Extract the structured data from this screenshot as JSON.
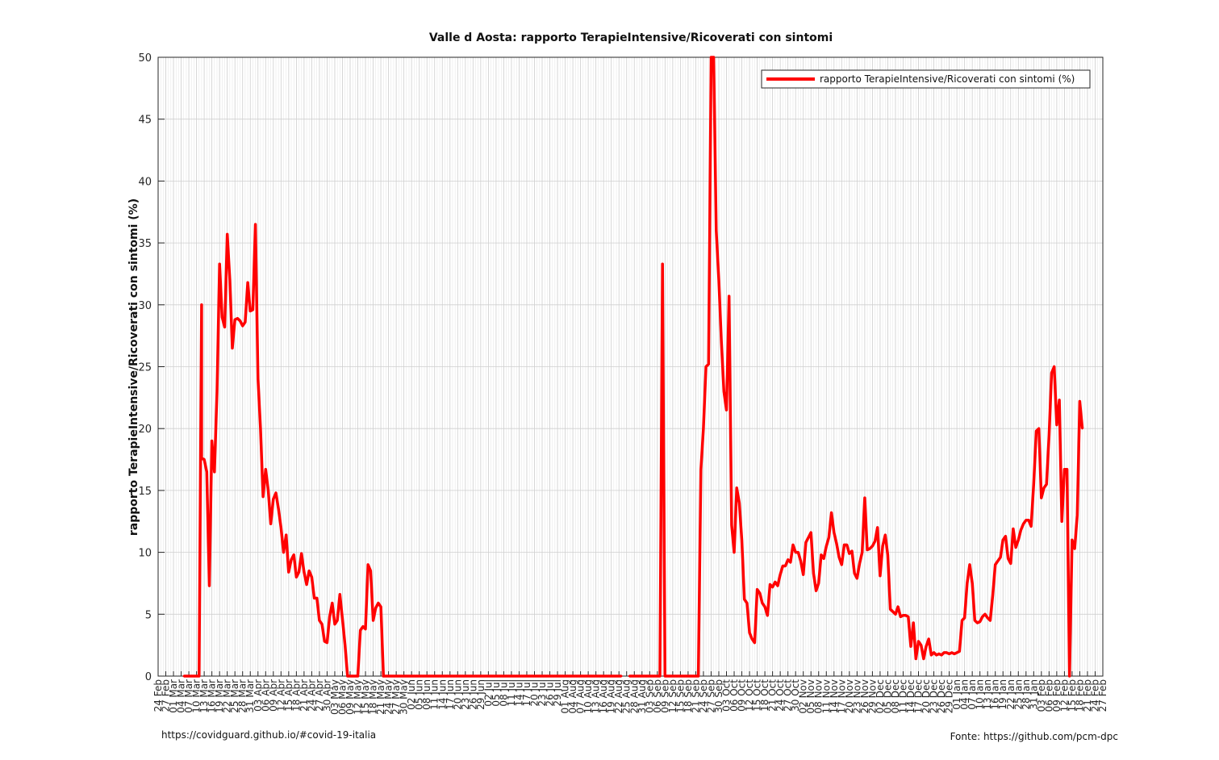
{
  "footer": {
    "left": "https://covidguard.github.io/#covid-19-italia",
    "right": "Fonte: https://github.com/pcm-dpc"
  },
  "chart_data": {
    "type": "line",
    "title": "Valle d Aosta: rapporto TerapieIntensive/Ricoverati con sintomi",
    "ylabel": "rapporto TerapieIntensive/Ricoverati con sintomi (%)",
    "xlabel": "",
    "ylim": [
      0,
      50
    ],
    "yticks": [
      0,
      5,
      10,
      15,
      20,
      25,
      30,
      35,
      40,
      45,
      50
    ],
    "grid": true,
    "legend_position": "top-right",
    "x_start": "2020-02-24",
    "x_end": "2021-02-27",
    "xticks": [
      "24 Feb",
      "27 Feb",
      "01 Mar",
      "04 Mar",
      "07 Mar",
      "10 Mar",
      "13 Mar",
      "16 Mar",
      "19 Mar",
      "22 Mar",
      "25 Mar",
      "28 Mar",
      "31 Mar",
      "03 Apr",
      "06 Apr",
      "09 Apr",
      "12 Apr",
      "15 Apr",
      "18 Apr",
      "21 Apr",
      "24 Apr",
      "27 Apr",
      "30 Apr",
      "03 May",
      "06 May",
      "09 May",
      "12 May",
      "15 May",
      "18 May",
      "21 May",
      "24 May",
      "27 May",
      "30 May",
      "02 Jun",
      "05 Jun",
      "08 Jun",
      "11 Jun",
      "14 Jun",
      "17 Jun",
      "20 Jun",
      "23 Jun",
      "26 Jun",
      "29 Jun",
      "02 Jul",
      "05 Jul",
      "08 Jul",
      "11 Jul",
      "14 Jul",
      "17 Jul",
      "20 Jul",
      "23 Jul",
      "26 Jul",
      "29 Jul",
      "01 Aug",
      "04 Aug",
      "07 Aug",
      "10 Aug",
      "13 Aug",
      "16 Aug",
      "19 Aug",
      "22 Aug",
      "25 Aug",
      "28 Aug",
      "31 Aug",
      "03 Sep",
      "06 Sep",
      "09 Sep",
      "12 Sep",
      "15 Sep",
      "18 Sep",
      "21 Sep",
      "24 Sep",
      "27 Sep",
      "30 Sep",
      "03 Oct",
      "06 Oct",
      "09 Oct",
      "12 Oct",
      "15 Oct",
      "18 Oct",
      "21 Oct",
      "24 Oct",
      "27 Oct",
      "30 Oct",
      "02 Nov",
      "05 Nov",
      "08 Nov",
      "11 Nov",
      "14 Nov",
      "17 Nov",
      "20 Nov",
      "23 Nov",
      "26 Nov",
      "29 Nov",
      "02 Dec",
      "05 Dec",
      "08 Dec",
      "11 Dec",
      "14 Dec",
      "17 Dec",
      "20 Dec",
      "23 Dec",
      "26 Dec",
      "29 Dec",
      "01 Jan",
      "04 Jan",
      "07 Jan",
      "10 Jan",
      "13 Jan",
      "16 Jan",
      "19 Jan",
      "22 Jan",
      "25 Jan",
      "28 Jan",
      "31 Jan",
      "03 Feb",
      "06 Feb",
      "09 Feb",
      "12 Feb",
      "15 Feb",
      "18 Feb",
      "21 Feb",
      "24 Feb",
      "27 Feb"
    ],
    "series": [
      {
        "name": "rapporto TerapieIntensive/Ricoverati con sintomi (%)",
        "color": "#ff0000",
        "points": [
          [
            "2020-03-05",
            0
          ],
          [
            "2020-03-11",
            0
          ],
          [
            "2020-03-12",
            30
          ],
          [
            "2020-03-12",
            17.6
          ],
          [
            "2020-03-13",
            17.5
          ],
          [
            "2020-03-14",
            16.5
          ],
          [
            "2020-03-15",
            7.3
          ],
          [
            "2020-03-16",
            19
          ],
          [
            "2020-03-17",
            16.5
          ],
          [
            "2020-03-18",
            23
          ],
          [
            "2020-03-19",
            33.3
          ],
          [
            "2020-03-20",
            29
          ],
          [
            "2020-03-21",
            28.2
          ],
          [
            "2020-03-22",
            35.7
          ],
          [
            "2020-03-23",
            32
          ],
          [
            "2020-03-24",
            26.5
          ],
          [
            "2020-03-25",
            28.8
          ],
          [
            "2020-03-26",
            28.9
          ],
          [
            "2020-03-27",
            28.7
          ],
          [
            "2020-03-28",
            28.3
          ],
          [
            "2020-03-29",
            28.6
          ],
          [
            "2020-03-30",
            31.8
          ],
          [
            "2020-03-31",
            29.5
          ],
          [
            "2020-04-01",
            29.6
          ],
          [
            "2020-04-02",
            36.5
          ],
          [
            "2020-04-03",
            24
          ],
          [
            "2020-04-04",
            20
          ],
          [
            "2020-04-05",
            14.5
          ],
          [
            "2020-04-06",
            16.7
          ],
          [
            "2020-04-07",
            15
          ],
          [
            "2020-04-08",
            12.3
          ],
          [
            "2020-04-09",
            14.3
          ],
          [
            "2020-04-10",
            14.8
          ],
          [
            "2020-04-11",
            13.5
          ],
          [
            "2020-04-12",
            12
          ],
          [
            "2020-04-13",
            10
          ],
          [
            "2020-04-14",
            11.4
          ],
          [
            "2020-04-15",
            8.4
          ],
          [
            "2020-04-16",
            9.4
          ],
          [
            "2020-04-17",
            9.8
          ],
          [
            "2020-04-18",
            8
          ],
          [
            "2020-04-19",
            8.4
          ],
          [
            "2020-04-20",
            9.9
          ],
          [
            "2020-04-21",
            8.4
          ],
          [
            "2020-04-22",
            7.4
          ],
          [
            "2020-04-23",
            8.5
          ],
          [
            "2020-04-24",
            8
          ],
          [
            "2020-04-25",
            6.3
          ],
          [
            "2020-04-26",
            6.3
          ],
          [
            "2020-04-27",
            4.5
          ],
          [
            "2020-04-28",
            4.2
          ],
          [
            "2020-04-29",
            2.8
          ],
          [
            "2020-04-30",
            2.7
          ],
          [
            "2020-05-01",
            4.8
          ],
          [
            "2020-05-02",
            5.9
          ],
          [
            "2020-05-03",
            4.2
          ],
          [
            "2020-05-04",
            4.5
          ],
          [
            "2020-05-05",
            6.6
          ],
          [
            "2020-05-06",
            4.6
          ],
          [
            "2020-05-07",
            2.5
          ],
          [
            "2020-05-08",
            0
          ],
          [
            "2020-05-12",
            0
          ],
          [
            "2020-05-13",
            3.7
          ],
          [
            "2020-05-14",
            4
          ],
          [
            "2020-05-15",
            3.8
          ],
          [
            "2020-05-16",
            9
          ],
          [
            "2020-05-17",
            8.5
          ],
          [
            "2020-05-18",
            4.5
          ],
          [
            "2020-05-19",
            5.5
          ],
          [
            "2020-05-20",
            5.9
          ],
          [
            "2020-05-21",
            5.6
          ],
          [
            "2020-05-22",
            0
          ],
          [
            "2020-08-23",
            0
          ],
          [
            "2020-08-25",
            null
          ],
          [
            "2020-08-26",
            0
          ],
          [
            "2020-09-07",
            0
          ],
          [
            "2020-09-08",
            33.3
          ],
          [
            "2020-09-09",
            0
          ],
          [
            "2020-09-22",
            0
          ],
          [
            "2020-09-23",
            16.7
          ],
          [
            "2020-09-24",
            20
          ],
          [
            "2020-09-25",
            25
          ],
          [
            "2020-09-26",
            25.2
          ],
          [
            "2020-09-27",
            50
          ],
          [
            "2020-09-28",
            50
          ],
          [
            "2020-09-29",
            36
          ],
          [
            "2020-09-30",
            32
          ],
          [
            "2020-10-01",
            27
          ],
          [
            "2020-10-02",
            23
          ],
          [
            "2020-10-03",
            21.5
          ],
          [
            "2020-10-04",
            30.7
          ],
          [
            "2020-10-05",
            12.2
          ],
          [
            "2020-10-06",
            10
          ],
          [
            "2020-10-07",
            15.2
          ],
          [
            "2020-10-08",
            14
          ],
          [
            "2020-10-09",
            11
          ],
          [
            "2020-10-10",
            6.2
          ],
          [
            "2020-10-11",
            5.9
          ],
          [
            "2020-10-12",
            3.5
          ],
          [
            "2020-10-13",
            3
          ],
          [
            "2020-10-14",
            2.7
          ],
          [
            "2020-10-15",
            7
          ],
          [
            "2020-10-16",
            6.7
          ],
          [
            "2020-10-17",
            5.9
          ],
          [
            "2020-10-18",
            5.6
          ],
          [
            "2020-10-19",
            4.9
          ],
          [
            "2020-10-20",
            7.4
          ],
          [
            "2020-10-21",
            7.2
          ],
          [
            "2020-10-22",
            7.6
          ],
          [
            "2020-10-23",
            7.3
          ],
          [
            "2020-10-24",
            8.2
          ],
          [
            "2020-10-25",
            8.9
          ],
          [
            "2020-10-26",
            8.9
          ],
          [
            "2020-10-27",
            9.4
          ],
          [
            "2020-10-28",
            9.2
          ],
          [
            "2020-10-29",
            10.6
          ],
          [
            "2020-10-30",
            10
          ],
          [
            "2020-10-31",
            10
          ],
          [
            "2020-11-01",
            9.3
          ],
          [
            "2020-11-02",
            8.2
          ],
          [
            "2020-11-03",
            10.8
          ],
          [
            "2020-11-04",
            11.2
          ],
          [
            "2020-11-05",
            11.6
          ],
          [
            "2020-11-06",
            8.3
          ],
          [
            "2020-11-07",
            6.9
          ],
          [
            "2020-11-08",
            7.5
          ],
          [
            "2020-11-09",
            9.8
          ],
          [
            "2020-11-10",
            9.5
          ],
          [
            "2020-11-11",
            10.5
          ],
          [
            "2020-11-12",
            11.2
          ],
          [
            "2020-11-13",
            13.2
          ],
          [
            "2020-11-14",
            11.6
          ],
          [
            "2020-11-15",
            10.7
          ],
          [
            "2020-11-16",
            9.6
          ],
          [
            "2020-11-17",
            9
          ],
          [
            "2020-11-18",
            10.6
          ],
          [
            "2020-11-19",
            10.6
          ],
          [
            "2020-11-20",
            9.9
          ],
          [
            "2020-11-21",
            10.1
          ],
          [
            "2020-11-22",
            8.3
          ],
          [
            "2020-11-23",
            7.9
          ],
          [
            "2020-11-24",
            9.1
          ],
          [
            "2020-11-25",
            10
          ],
          [
            "2020-11-26",
            14.4
          ],
          [
            "2020-11-27",
            10.2
          ],
          [
            "2020-11-28",
            10.3
          ],
          [
            "2020-11-29",
            10.5
          ],
          [
            "2020-11-30",
            10.9
          ],
          [
            "2020-12-01",
            12
          ],
          [
            "2020-12-02",
            8.1
          ],
          [
            "2020-12-03",
            10.5
          ],
          [
            "2020-12-04",
            11.4
          ],
          [
            "2020-12-05",
            9.8
          ],
          [
            "2020-12-06",
            5.4
          ],
          [
            "2020-12-07",
            5.2
          ],
          [
            "2020-12-08",
            5
          ],
          [
            "2020-12-09",
            5.6
          ],
          [
            "2020-12-10",
            4.8
          ],
          [
            "2020-12-11",
            4.9
          ],
          [
            "2020-12-12",
            4.9
          ],
          [
            "2020-12-13",
            4.8
          ],
          [
            "2020-12-14",
            2.4
          ],
          [
            "2020-12-15",
            4.3
          ],
          [
            "2020-12-16",
            1.4
          ],
          [
            "2020-12-17",
            2.8
          ],
          [
            "2020-12-18",
            2.5
          ],
          [
            "2020-12-19",
            1.4
          ],
          [
            "2020-12-20",
            2.4
          ],
          [
            "2020-12-21",
            3
          ],
          [
            "2020-12-22",
            1.7
          ],
          [
            "2020-12-23",
            1.9
          ],
          [
            "2020-12-24",
            1.7
          ],
          [
            "2020-12-25",
            1.8
          ],
          [
            "2020-12-26",
            1.7
          ],
          [
            "2020-12-27",
            1.9
          ],
          [
            "2020-12-28",
            1.9
          ],
          [
            "2020-12-29",
            1.8
          ],
          [
            "2020-12-30",
            1.9
          ],
          [
            "2020-12-31",
            1.8
          ],
          [
            "2021-01-01",
            1.9
          ],
          [
            "2021-01-02",
            2
          ],
          [
            "2021-01-03",
            4.5
          ],
          [
            "2021-01-04",
            4.7
          ],
          [
            "2021-01-05",
            7.5
          ],
          [
            "2021-01-06",
            9
          ],
          [
            "2021-01-07",
            7.5
          ],
          [
            "2021-01-08",
            4.5
          ],
          [
            "2021-01-09",
            4.3
          ],
          [
            "2021-01-10",
            4.4
          ],
          [
            "2021-01-11",
            4.8
          ],
          [
            "2021-01-12",
            5
          ],
          [
            "2021-01-13",
            4.7
          ],
          [
            "2021-01-14",
            4.5
          ],
          [
            "2021-01-15",
            6.5
          ],
          [
            "2021-01-16",
            9
          ],
          [
            "2021-01-17",
            9.3
          ],
          [
            "2021-01-18",
            9.6
          ],
          [
            "2021-01-19",
            11
          ],
          [
            "2021-01-20",
            11.3
          ],
          [
            "2021-01-21",
            9.5
          ],
          [
            "2021-01-22",
            9.1
          ],
          [
            "2021-01-23",
            11.9
          ],
          [
            "2021-01-24",
            10.4
          ],
          [
            "2021-01-25",
            11
          ],
          [
            "2021-01-26",
            11.8
          ],
          [
            "2021-01-27",
            12.3
          ],
          [
            "2021-01-28",
            12.6
          ],
          [
            "2021-01-29",
            12.6
          ],
          [
            "2021-01-30",
            12.1
          ],
          [
            "2021-01-31",
            15.5
          ],
          [
            "2021-02-01",
            19.8
          ],
          [
            "2021-02-02",
            20
          ],
          [
            "2021-02-03",
            14.4
          ],
          [
            "2021-02-04",
            15.2
          ],
          [
            "2021-02-05",
            15.5
          ],
          [
            "2021-02-06",
            19.5
          ],
          [
            "2021-02-07",
            24.5
          ],
          [
            "2021-02-08",
            25
          ],
          [
            "2021-02-09",
            20.3
          ],
          [
            "2021-02-10",
            22.3
          ],
          [
            "2021-02-11",
            12.5
          ],
          [
            "2021-02-12",
            16.7
          ],
          [
            "2021-02-13",
            16.7
          ],
          [
            "2021-02-14",
            0
          ],
          [
            "2021-02-15",
            11
          ],
          [
            "2021-02-16",
            10.3
          ],
          [
            "2021-02-17",
            13
          ],
          [
            "2021-02-18",
            22.2
          ],
          [
            "2021-02-19",
            20
          ]
        ]
      }
    ]
  }
}
